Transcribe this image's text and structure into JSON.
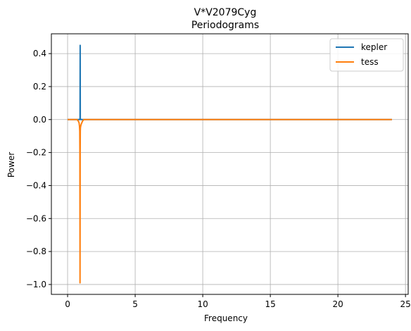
{
  "chart_data": {
    "type": "line",
    "title": "V*V2079Cyg",
    "subtitle": "Periodograms",
    "xlabel": "Frequency",
    "ylabel": "Power",
    "xlim": [
      -1.2,
      25.2
    ],
    "ylim": [
      -1.06,
      0.52
    ],
    "xticks": [
      0,
      5,
      10,
      15,
      20,
      25
    ],
    "xtick_labels": [
      "0",
      "5",
      "10",
      "15",
      "20",
      "25"
    ],
    "yticks": [
      0.4,
      0.2,
      0.0,
      -0.2,
      -0.4,
      -0.6,
      -0.8,
      -1.0
    ],
    "ytick_labels": [
      "0.4",
      "0.2",
      "0.0",
      "−0.2",
      "−0.4",
      "−0.6",
      "−0.8",
      "−1.0"
    ],
    "grid": true,
    "legend_position": "top-right",
    "series": [
      {
        "name": "kepler",
        "color": "#1f77b4",
        "x": [
          0.0,
          0.9,
          0.92,
          0.93,
          0.94,
          0.96,
          1.0,
          24.0
        ],
        "y": [
          0.0,
          0.0,
          0.01,
          0.45,
          0.01,
          0.0,
          0.0,
          0.0
        ]
      },
      {
        "name": "tess",
        "color": "#ff7f0e",
        "x": [
          0.0,
          0.7,
          0.8,
          0.85,
          0.88,
          0.9,
          0.91,
          0.92,
          0.93,
          0.94,
          0.95,
          0.97,
          1.0,
          1.05,
          1.1,
          1.2,
          24.0
        ],
        "y": [
          0.0,
          0.0,
          -0.01,
          -0.02,
          -0.04,
          -0.07,
          -0.2,
          -0.99,
          -0.2,
          -0.07,
          -0.05,
          -0.04,
          -0.03,
          -0.02,
          -0.01,
          0.0,
          0.0
        ]
      }
    ]
  }
}
